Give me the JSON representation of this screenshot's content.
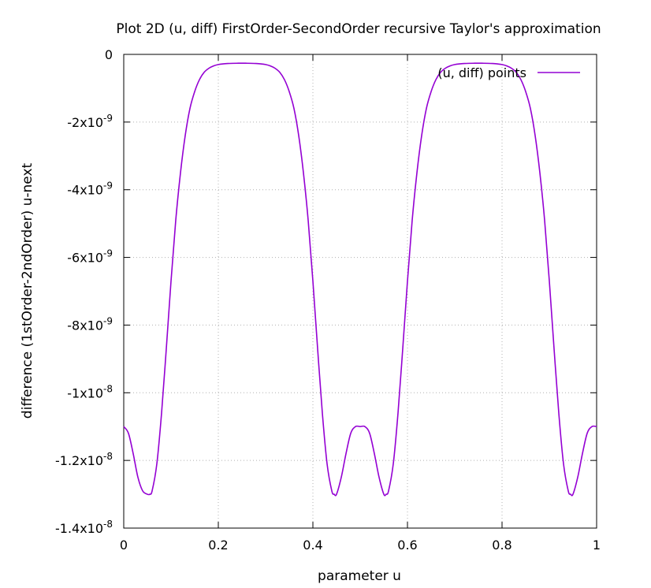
{
  "chart_data": {
    "type": "line",
    "title": "Plot 2D (u, diff) FirstOrder-SecondOrder recursive Taylor's approximation",
    "xlabel": "parameter u",
    "ylabel": "difference (1stOrder-2ndOrder) u-next",
    "xlim": [
      0,
      1
    ],
    "ylim": [
      -1.4e-08,
      0
    ],
    "grid": true,
    "legend_position": "top-right",
    "x_ticks": [
      {
        "value": 0,
        "label": "0"
      },
      {
        "value": 0.2,
        "label": "0.2"
      },
      {
        "value": 0.4,
        "label": "0.4"
      },
      {
        "value": 0.6,
        "label": "0.6"
      },
      {
        "value": 0.8,
        "label": "0.8"
      },
      {
        "value": 1,
        "label": "1"
      }
    ],
    "y_ticks": [
      {
        "value": 0,
        "mant": "0",
        "exp": ""
      },
      {
        "value": -2e-09,
        "mant": "-2x10",
        "exp": "-9"
      },
      {
        "value": -4e-09,
        "mant": "-4x10",
        "exp": "-9"
      },
      {
        "value": -6e-09,
        "mant": "-6x10",
        "exp": "-9"
      },
      {
        "value": -8e-09,
        "mant": "-8x10",
        "exp": "-9"
      },
      {
        "value": -1e-08,
        "mant": "-1x10",
        "exp": "-8"
      },
      {
        "value": -1.2e-08,
        "mant": "-1.2x10",
        "exp": "-8"
      },
      {
        "value": -1.4e-08,
        "mant": "-1.4x10",
        "exp": "-8"
      }
    ],
    "series": [
      {
        "name": "(u, diff) points",
        "color": "#9400d3",
        "x": [
          0,
          0.01,
          0.02,
          0.03,
          0.04,
          0.05,
          0.055,
          0.06,
          0.07,
          0.08,
          0.09,
          0.1,
          0.11,
          0.12,
          0.13,
          0.14,
          0.15,
          0.16,
          0.17,
          0.18,
          0.19,
          0.2,
          0.21,
          0.22,
          0.23,
          0.24,
          0.25,
          0.26,
          0.27,
          0.28,
          0.29,
          0.3,
          0.31,
          0.32,
          0.33,
          0.34,
          0.35,
          0.36,
          0.37,
          0.38,
          0.39,
          0.4,
          0.41,
          0.42,
          0.43,
          0.44,
          0.445,
          0.45,
          0.46,
          0.47,
          0.48,
          0.49,
          0.5,
          0.51,
          0.52,
          0.53,
          0.54,
          0.55,
          0.555,
          0.56,
          0.57,
          0.58,
          0.59,
          0.6,
          0.61,
          0.62,
          0.63,
          0.64,
          0.65,
          0.66,
          0.67,
          0.68,
          0.69,
          0.7,
          0.71,
          0.72,
          0.73,
          0.74,
          0.75,
          0.76,
          0.77,
          0.78,
          0.79,
          0.8,
          0.81,
          0.82,
          0.83,
          0.84,
          0.85,
          0.86,
          0.87,
          0.88,
          0.89,
          0.9,
          0.91,
          0.92,
          0.93,
          0.94,
          0.945,
          0.95,
          0.96,
          0.97,
          0.98,
          0.99,
          1
        ],
        "y": [
          -1.1e-08,
          -1.12e-08,
          -1.18e-08,
          -1.25e-08,
          -1.29e-08,
          -1.3e-08,
          -1.3e-08,
          -1.29e-08,
          -1.21e-08,
          -1.06e-08,
          -8.7e-09,
          -6.7e-09,
          -4.9e-09,
          -3.5e-09,
          -2.4e-09,
          -1.6e-09,
          -1.1e-09,
          -7.5e-10,
          -5.3e-10,
          -4.1e-10,
          -3.4e-10,
          -3e-10,
          -2.8e-10,
          -2.7e-10,
          -2.65e-10,
          -2.62e-10,
          -2.6e-10,
          -2.62e-10,
          -2.65e-10,
          -2.7e-10,
          -2.8e-10,
          -3e-10,
          -3.4e-10,
          -4.1e-10,
          -5.3e-10,
          -7.5e-10,
          -1.1e-09,
          -1.6e-09,
          -2.4e-09,
          -3.5e-09,
          -4.9e-09,
          -6.7e-09,
          -8.7e-09,
          -1.06e-08,
          -1.21e-08,
          -1.29e-08,
          -1.3e-08,
          -1.3e-08,
          -1.25e-08,
          -1.18e-08,
          -1.12e-08,
          -1.1e-08,
          -1.1e-08,
          -1.1e-08,
          -1.12e-08,
          -1.18e-08,
          -1.25e-08,
          -1.3e-08,
          -1.3e-08,
          -1.29e-08,
          -1.21e-08,
          -1.06e-08,
          -8.7e-09,
          -6.7e-09,
          -4.9e-09,
          -3.5e-09,
          -2.4e-09,
          -1.6e-09,
          -1.1e-09,
          -7.5e-10,
          -5.3e-10,
          -4.1e-10,
          -3.4e-10,
          -3e-10,
          -2.8e-10,
          -2.7e-10,
          -2.65e-10,
          -2.62e-10,
          -2.6e-10,
          -2.62e-10,
          -2.65e-10,
          -2.7e-10,
          -2.8e-10,
          -3e-10,
          -3.4e-10,
          -4.1e-10,
          -5.3e-10,
          -7.5e-10,
          -1.1e-09,
          -1.6e-09,
          -2.4e-09,
          -3.5e-09,
          -4.9e-09,
          -6.7e-09,
          -8.7e-09,
          -1.06e-08,
          -1.21e-08,
          -1.29e-08,
          -1.3e-08,
          -1.3e-08,
          -1.25e-08,
          -1.18e-08,
          -1.12e-08,
          -1.1e-08,
          -1.1e-08
        ]
      }
    ]
  }
}
